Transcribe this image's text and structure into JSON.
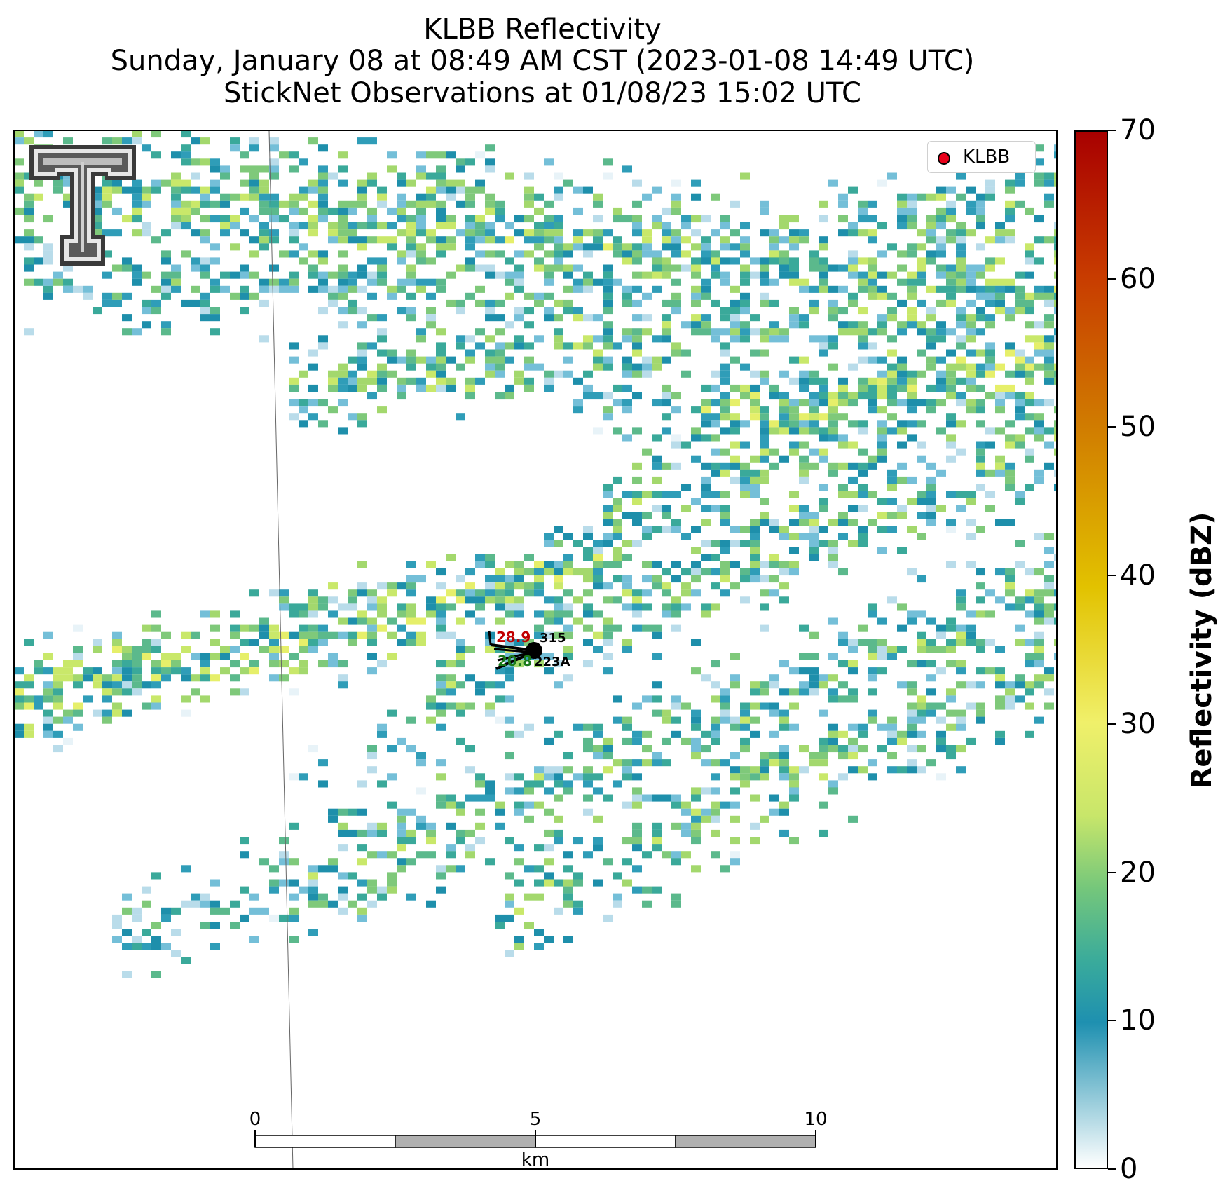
{
  "title": {
    "line1": "KLBB Reflectivity",
    "line2": "Sunday, January 08 at 08:49 AM CST (2023-01-08 14:49 UTC)",
    "line3": "StickNet Observations at 01/08/23 15:02 UTC"
  },
  "legend": {
    "label": "KLBB",
    "marker_color": "#e8001a"
  },
  "colorbar": {
    "label": "Reflectivity (dBZ)",
    "ticks": [
      "0",
      "10",
      "20",
      "30",
      "40",
      "50",
      "60",
      "70"
    ],
    "range": [
      0,
      70
    ]
  },
  "scalebar": {
    "ticks": [
      "0",
      "5",
      "10"
    ],
    "unit": "km"
  },
  "station": {
    "temperature": "28.9",
    "dewpoint": "20.8",
    "id_top": "315",
    "id_bottom": "223A",
    "temperature_color": "#c00000",
    "dewpoint_color": "#1a7a1a"
  },
  "logo": {
    "name": "texas-tech-double-t-logo"
  }
}
